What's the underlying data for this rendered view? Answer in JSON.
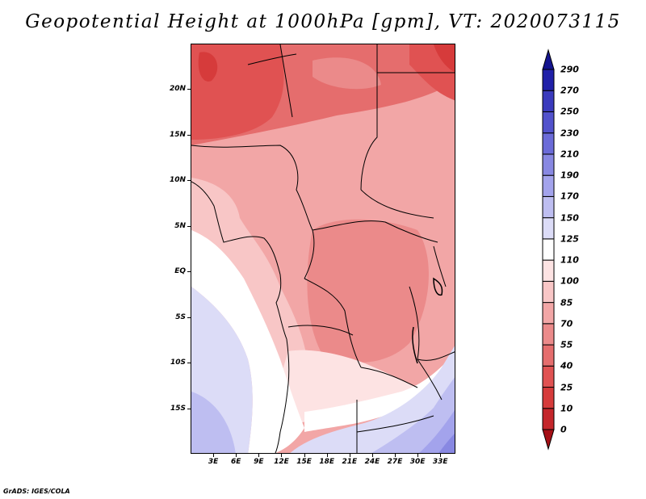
{
  "title": "Geopotential Height at 1000hPa [gpm], VT: 2020073115",
  "credit": "GrADS: IGES/COLA",
  "map": {
    "variable": "Geopotential Height",
    "level": "1000hPa",
    "units": "gpm",
    "valid_time": "2020073115",
    "lon_range": [
      0,
      35
    ],
    "lat_range": [
      -20,
      25
    ],
    "lat_labels": [
      {
        "value": 20,
        "label": "20N"
      },
      {
        "value": 15,
        "label": "15N"
      },
      {
        "value": 10,
        "label": "10N"
      },
      {
        "value": 5,
        "label": "5N"
      },
      {
        "value": 0,
        "label": "EQ"
      },
      {
        "value": -5,
        "label": "5S"
      },
      {
        "value": -10,
        "label": "10S"
      },
      {
        "value": -15,
        "label": "15S"
      }
    ],
    "lon_labels": [
      {
        "value": 3,
        "label": "3E"
      },
      {
        "value": 6,
        "label": "6E"
      },
      {
        "value": 9,
        "label": "9E"
      },
      {
        "value": 12,
        "label": "12E"
      },
      {
        "value": 15,
        "label": "15E"
      },
      {
        "value": 18,
        "label": "18E"
      },
      {
        "value": 21,
        "label": "21E"
      },
      {
        "value": 24,
        "label": "24E"
      },
      {
        "value": 27,
        "label": "27E"
      },
      {
        "value": 30,
        "label": "30E"
      },
      {
        "value": 33,
        "label": "33E"
      }
    ]
  },
  "colorbar": {
    "levels": [
      "0",
      "10",
      "25",
      "40",
      "55",
      "70",
      "85",
      "100",
      "110",
      "125",
      "150",
      "170",
      "190",
      "210",
      "230",
      "250",
      "270",
      "290"
    ],
    "colors": [
      "#a50f15",
      "#c4262b",
      "#d63b3b",
      "#e05252",
      "#e56d6d",
      "#eb8a8a",
      "#f2a6a6",
      "#f8c6c6",
      "#fde3e3",
      "#ffffff",
      "#dcdcf7",
      "#bebef1",
      "#a3a3ec",
      "#8888e2",
      "#6b6bd8",
      "#5252cc",
      "#3a3abd",
      "#2020a8",
      "#14148f"
    ]
  }
}
